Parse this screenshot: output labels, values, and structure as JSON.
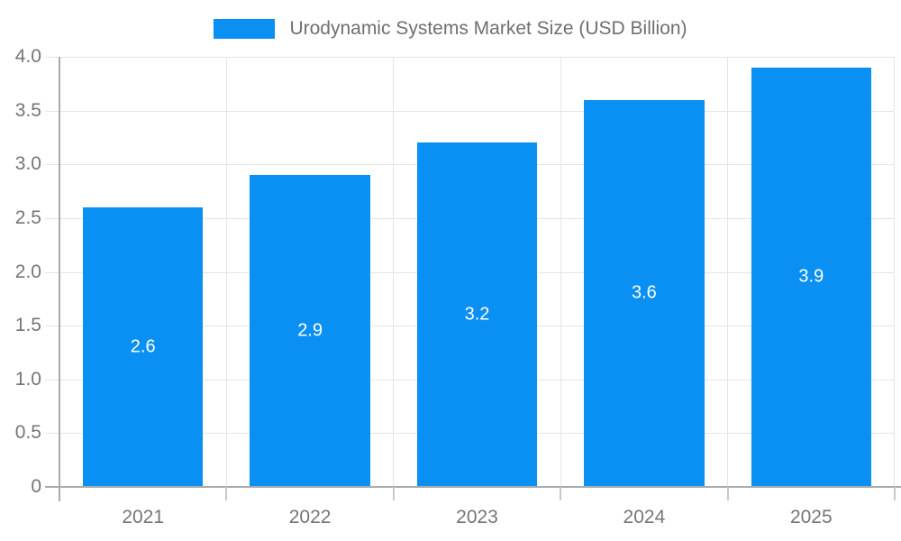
{
  "chart_data": {
    "type": "bar",
    "title": "Urodynamic Systems Market Size (USD Billion)",
    "legend_position": "top",
    "categories": [
      "2021",
      "2022",
      "2023",
      "2024",
      "2025"
    ],
    "series": [
      {
        "name": "Urodynamic Systems Market Size (USD Billion)",
        "values": [
          2.6,
          2.9,
          3.2,
          3.6,
          3.9
        ],
        "bar_labels": [
          "2.6",
          "2.9",
          "3.2",
          "3.6",
          "3.9"
        ]
      }
    ],
    "xlabel": "",
    "ylabel": "",
    "ylim": [
      0,
      4.0
    ],
    "ytick_step": 0.5,
    "yticks": [
      "4.0",
      "3.5",
      "3.0",
      "2.5",
      "2.0",
      "1.5",
      "1.0",
      "0.5",
      "0"
    ],
    "grid": true,
    "colors": {
      "bar": "#0a90f2",
      "bar_label_text": "#ffffff",
      "axis_text": "#757575",
      "legend_text": "#6f6f6f",
      "gridline": "#e5e5e5",
      "axis_line": "#a9a9a9",
      "bottom_tick": "#c8c8c8",
      "background": "#ffffff"
    }
  }
}
